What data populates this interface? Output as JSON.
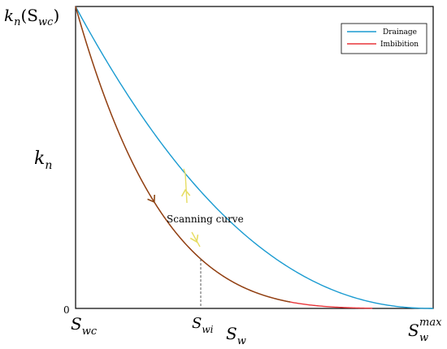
{
  "chart_data": {
    "type": "line",
    "y_top_label": {
      "base": "k",
      "sub": "n",
      "rest": "(S",
      "sub2": "wc",
      "close": ")"
    },
    "ylabel": {
      "base": "k",
      "sub": "n"
    },
    "y_zero_label": "0",
    "x_ticks": [
      {
        "base": "S",
        "sub": "wc",
        "sup": ""
      },
      {
        "base": "S",
        "sub": "wi",
        "sup": ""
      },
      {
        "base": "S",
        "sub": "w",
        "sup": "max"
      }
    ],
    "xlabel": {
      "base": "S",
      "sub": "w"
    },
    "annotation": "Scanning curve",
    "x_range": [
      0,
      1
    ],
    "y_range": [
      0,
      1
    ],
    "s_wi": 0.35,
    "series": [
      {
        "name": "Drainage",
        "color": "#1a9bd1",
        "exponent": 2.2,
        "x": [
          0,
          1
        ]
      },
      {
        "name": "Imbibition",
        "color": "#e8353a",
        "exponent": 4.2,
        "x": [
          0,
          0.83
        ]
      }
    ],
    "scanning_curve_color": "#8b4513",
    "arrow_color": "#e6dd63",
    "legend_position": "top-right",
    "grid": false
  }
}
